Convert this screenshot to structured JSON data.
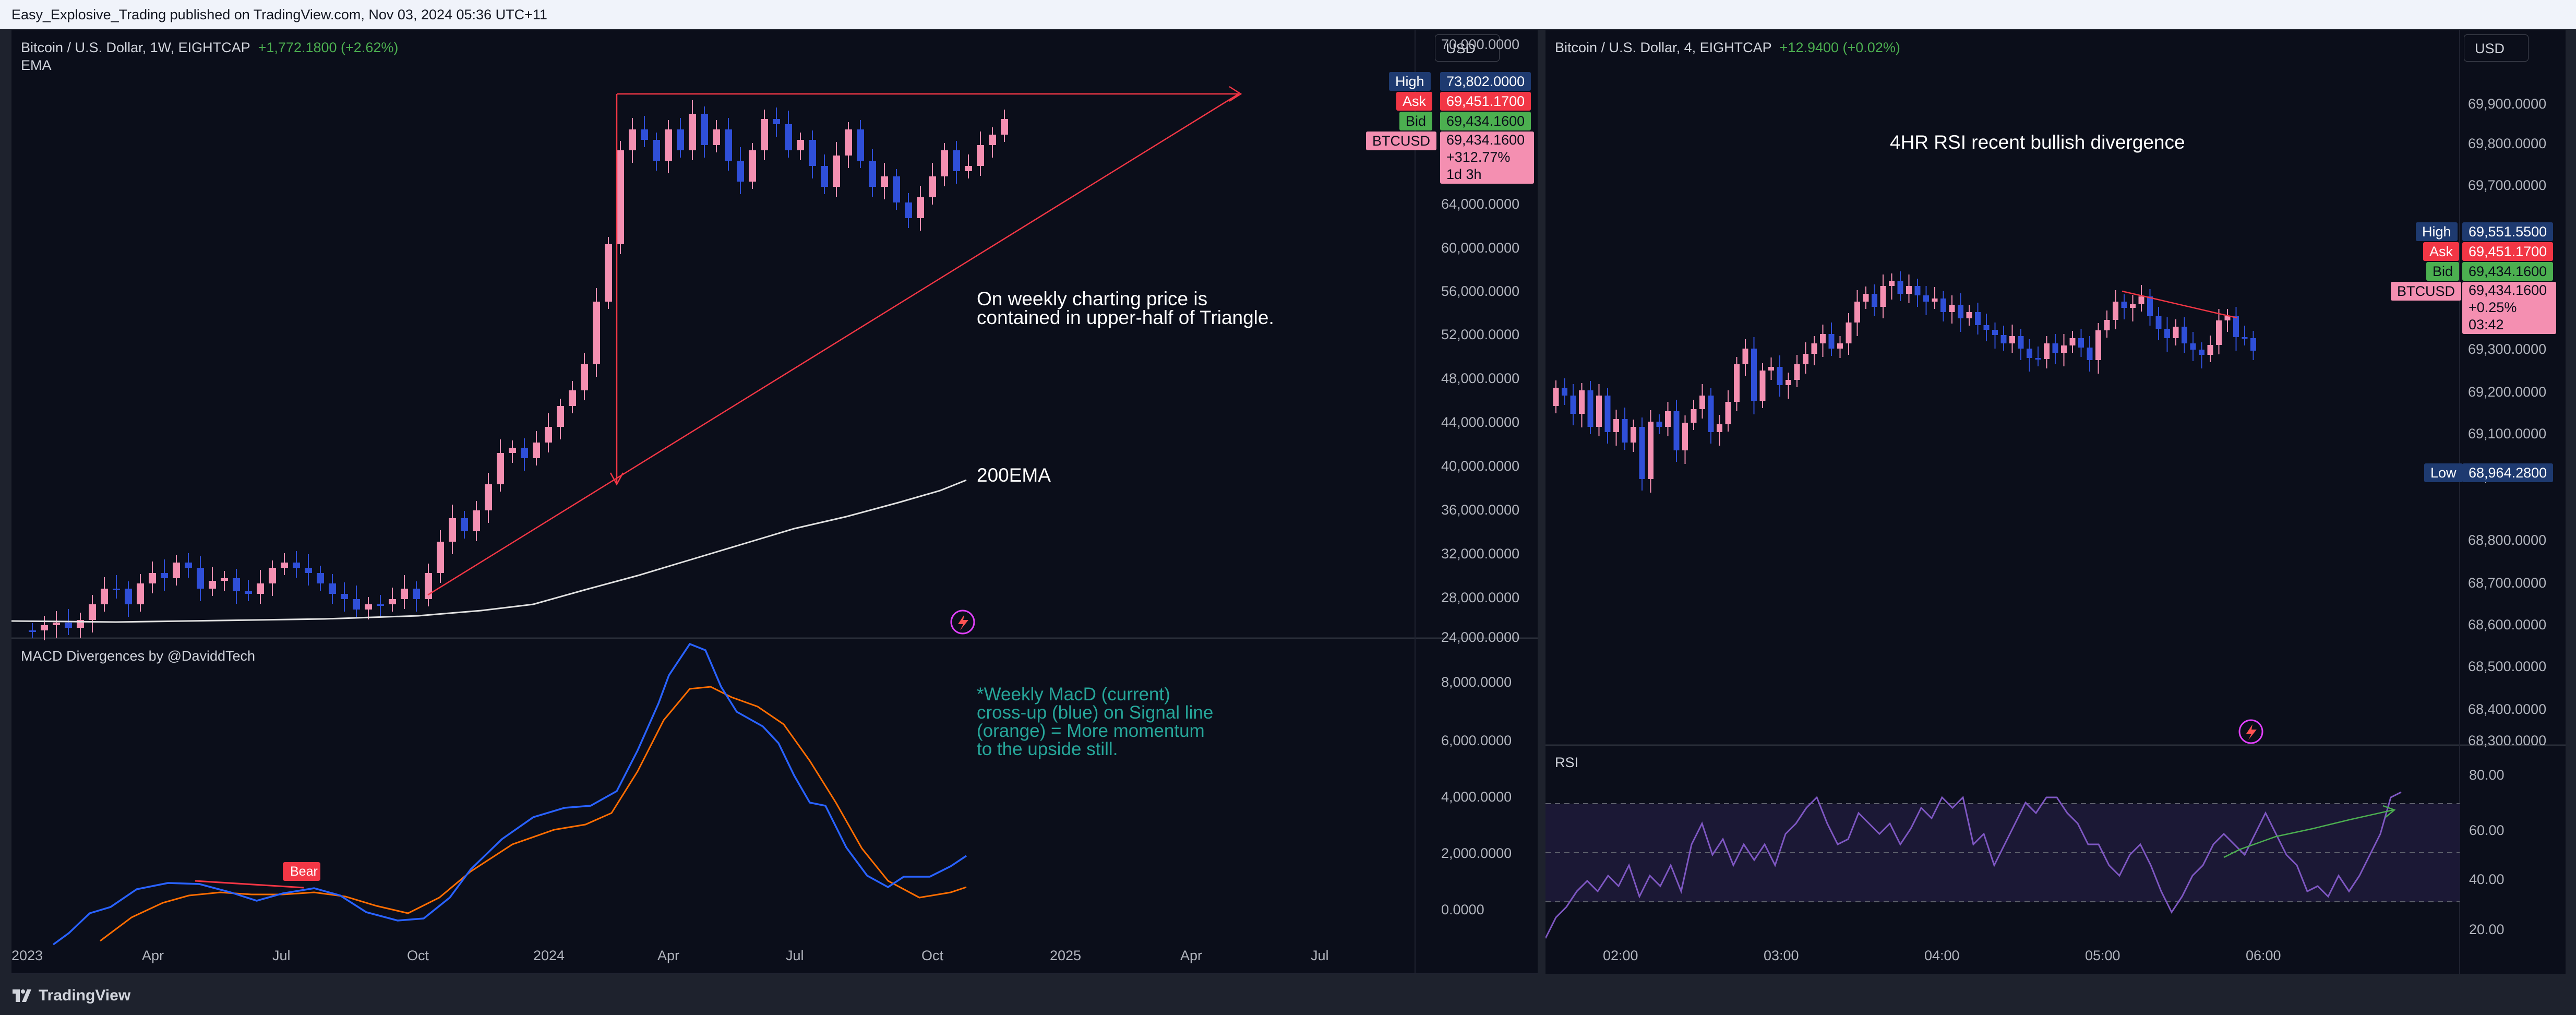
{
  "header": {
    "publisher": "Easy_Explosive_Trading published on TradingView.com, Nov 03, 2024 05:36 UTC+11"
  },
  "footer": {
    "brand": "TradingView"
  },
  "left_panel": {
    "symbol": "Bitcoin / U.S. Dollar, 1W, EIGHTCAP",
    "change": "+1,772.1800 (+2.62%)",
    "indicator_ema": "EMA",
    "currency_button": "USD",
    "price_axis": [
      "70,000.0000",
      "64,000.0000",
      "60,000.0000",
      "56,000.0000",
      "52,000.0000",
      "48,000.0000",
      "44,000.0000",
      "40,000.0000",
      "36,000.0000",
      "32,000.0000",
      "28,000.0000",
      "24,000.0000"
    ],
    "badges": {
      "high_label": "High",
      "high_value": "73,802.0000",
      "ask_label": "Ask",
      "ask_value": "69,451.1700",
      "bid_label": "Bid",
      "bid_value": "69,434.1600",
      "symbol_label": "BTCUSD",
      "symbol_value": "69,434.1600",
      "symbol_change": "+312.77%",
      "symbol_countdown": "1d 3h"
    },
    "note_triangle_1": "On weekly charting price is",
    "note_triangle_2": "contained in upper-half of Triangle.",
    "note_ema": "200EMA",
    "macd_title": "MACD Divergences by @DaviddTech",
    "macd_axis": [
      "8,000.0000",
      "6,000.0000",
      "4,000.0000",
      "2,000.0000",
      "0.0000"
    ],
    "macd_bear_label": "Bear",
    "macd_note": [
      "*Weekly MacD (current)",
      "cross-up (blue) on Signal line",
      "(orange) = More momentum",
      "to the upside still."
    ],
    "time_axis": [
      "2023",
      "Apr",
      "Jul",
      "Oct",
      "2024",
      "Apr",
      "Jul",
      "Oct",
      "2025",
      "Apr",
      "Jul"
    ]
  },
  "right_panel": {
    "symbol": "Bitcoin / U.S. Dollar, 4, EIGHTCAP",
    "change": "+12.9400 (+0.02%)",
    "currency_button": "USD",
    "price_axis": [
      "69,900.0000",
      "69,800.0000",
      "69,700.0000",
      "69,300.0000",
      "69,200.0000",
      "69,100.0000",
      "69,000.0000",
      "68,800.0000",
      "68,700.0000",
      "68,600.0000",
      "68,500.0000",
      "68,400.0000",
      "68,300.0000"
    ],
    "badges": {
      "high_label": "High",
      "high_value": "69,551.5500",
      "ask_label": "Ask",
      "ask_value": "69,451.1700",
      "bid_label": "Bid",
      "bid_value": "69,434.1600",
      "symbol_label": "BTCUSD",
      "symbol_value": "69,434.1600",
      "symbol_change": "+0.25%",
      "symbol_countdown": "03:42",
      "low_label": "Low",
      "low_value": "68,964.2800"
    },
    "note": "4HR RSI recent bullish divergence",
    "rsi_title": "RSI",
    "rsi_axis": [
      "80.00",
      "60.00",
      "40.00",
      "20.00"
    ],
    "time_axis": [
      "02:00",
      "03:00",
      "04:00",
      "05:00",
      "06:00"
    ]
  },
  "colors": {
    "up": "#f48fb1",
    "down": "#2f4fd8",
    "ema": "#e0e0e0",
    "trend": "#f23645",
    "macd": "#2962ff",
    "signal": "#ff6d00",
    "rsi": "#7e57c2",
    "ask": "#f23645",
    "bid": "#4caf50",
    "high": "#1e3a70"
  }
}
